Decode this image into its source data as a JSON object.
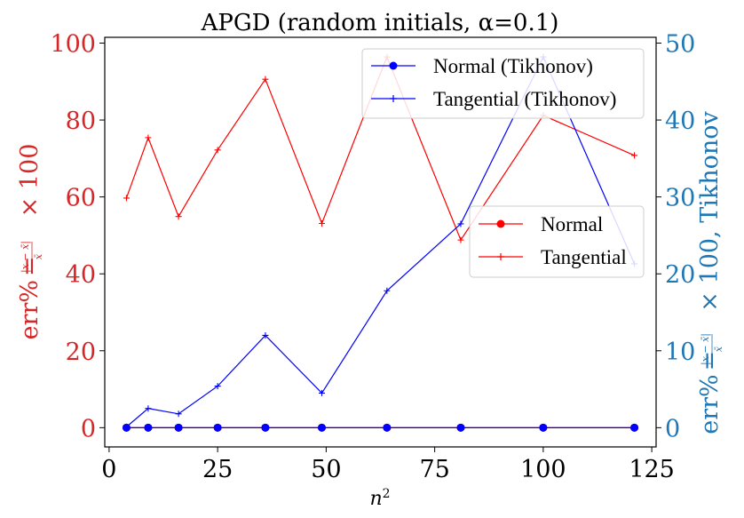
{
  "chart_data": {
    "type": "line",
    "title": "APGD (random initials, α=0.1)",
    "xlabel": "n²",
    "ylabel_left": "err% = (|x − x̄| / x̄) × 100",
    "ylabel_right": "err% = (|x − x̄| / x̄) × 100, Tikhonov",
    "x": [
      4,
      9,
      16,
      25,
      36,
      49,
      64,
      81,
      100,
      121
    ],
    "xlim": [
      -1,
      126
    ],
    "ylim_left": [
      -5,
      101.5
    ],
    "ylim_right": [
      -2.5,
      50.75
    ],
    "xticks": [
      0,
      25,
      50,
      75,
      100,
      125
    ],
    "yticks_left": [
      0,
      20,
      40,
      60,
      80,
      100
    ],
    "yticks_right": [
      0,
      10,
      20,
      30,
      40,
      50
    ],
    "colors": {
      "left_axis": "#d62728",
      "right_axis": "#1f77b4",
      "red": "#ff0000",
      "blue": "#0000ff"
    },
    "series": [
      {
        "name": "Normal",
        "axis": "left",
        "color": "#ff0000",
        "marker": "circle",
        "values": [
          0,
          0,
          0,
          0,
          0,
          0,
          0,
          0,
          0,
          0
        ]
      },
      {
        "name": "Tangential",
        "axis": "left",
        "color": "#ff0000",
        "marker": "plus",
        "values": [
          59.7,
          75.4,
          54.9,
          72.2,
          90.6,
          53.1,
          96.4,
          48.8,
          81.2,
          70.8
        ]
      },
      {
        "name": "Normal (Tikhonov)",
        "axis": "right",
        "color": "#0000ff",
        "marker": "circle",
        "values": [
          0,
          0,
          0,
          0,
          0,
          0,
          0,
          0,
          0,
          0
        ]
      },
      {
        "name": "Tangential (Tikhonov)",
        "axis": "right",
        "color": "#0000ff",
        "marker": "plus",
        "values": [
          0.1,
          2.5,
          1.8,
          5.4,
          12.0,
          4.5,
          17.8,
          26.5,
          48.2,
          21.3
        ]
      }
    ],
    "legends": [
      {
        "position": "upper-right",
        "entries": [
          "Normal (Tikhonov)",
          "Tangential (Tikhonov)"
        ]
      },
      {
        "position": "center-right",
        "entries": [
          "Normal",
          "Tangential"
        ]
      }
    ],
    "grid": false
  }
}
